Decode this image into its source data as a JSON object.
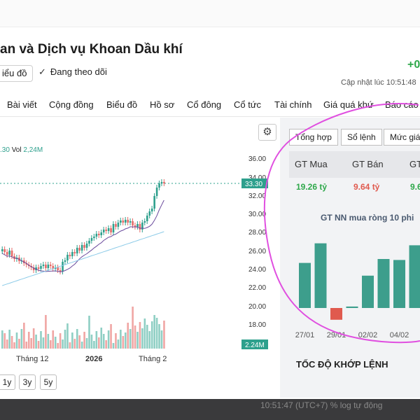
{
  "header": {
    "title": "an và Dịch vụ Khoan Dầu khí",
    "price_change": "+0",
    "chart_button": "iểu đồ",
    "follow_label": "Đang theo dõi",
    "updated_label": "Cập nhật lúc",
    "updated_time": "10:51:48"
  },
  "nav": [
    "Bài viết",
    "Cộng đồng",
    "Biểu đồ",
    "Hồ sơ",
    "Cổ đông",
    "Cổ tức",
    "Tài chính",
    "Giá quá khứ",
    "Báo cáo"
  ],
  "chart": {
    "legend_last": ".30",
    "legend_vol_label": "Vol",
    "legend_vol_value": "2,24M",
    "y_ticks": [
      "36.00",
      "34.00",
      "32.00",
      "30.00",
      "28.00",
      "26.00",
      "24.00",
      "22.00",
      "20.00",
      "18.00"
    ],
    "price_tag": "33.30",
    "volume_tag": "2.24M",
    "x_labels": [
      "Tháng 12",
      "2026",
      "Tháng 2"
    ],
    "range_buttons": [
      "1y",
      "3y",
      "5y"
    ]
  },
  "chart_data": {
    "type": "bar",
    "title": "GT NN mua ròng 10 phi",
    "categories": [
      "27/01",
      "",
      "29/01",
      "",
      "02/02",
      "",
      "04/02",
      ""
    ],
    "values": [
      4.6,
      6.6,
      -1.2,
      0.15,
      3.3,
      5.0,
      4.9,
      6.4
    ],
    "colors": {
      "positive": "#3d9e8c",
      "negative": "#e05a4e"
    }
  },
  "trading": {
    "tabs": [
      "Tổng hợp",
      "Sổ lệnh",
      "Mức giá"
    ],
    "headers": [
      "GT Mua",
      "GT Bán",
      "GT"
    ],
    "values": [
      "19.26 tỷ",
      "9.64 tỷ",
      "9.6"
    ],
    "speed_title": "TỐC ĐỘ KHỚP LỆNH"
  },
  "footer": {
    "text": "10:51:47 (UTC+7)    %    log   tự động"
  }
}
